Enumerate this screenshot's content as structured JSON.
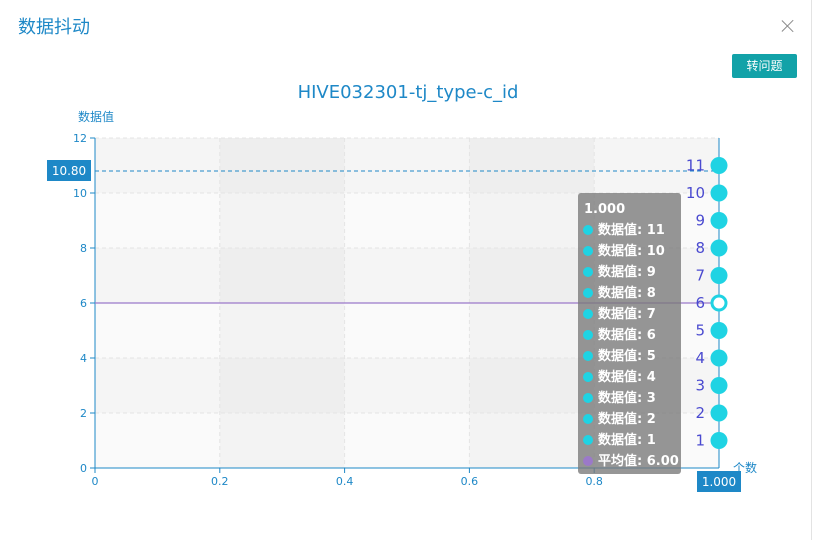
{
  "dialog": {
    "title": "数据抖动",
    "action_label": "转问题"
  },
  "chart_data": {
    "type": "scatter",
    "title": "HIVE032301-tj_type-c_id",
    "ylabel": "数据值",
    "xlabel": "个数",
    "xlim": [
      0,
      1
    ],
    "ylim": [
      0,
      12
    ],
    "x_ticks": [
      "0",
      "0.2",
      "0.4",
      "0.6",
      "0.8"
    ],
    "y_ticks": [
      "0",
      "2",
      "4",
      "6",
      "8",
      "10",
      "12"
    ],
    "grid": true,
    "series": [
      {
        "name": "数据值",
        "color": "#1fd3e3",
        "points": [
          {
            "x": 1,
            "y": 11,
            "label": "11"
          },
          {
            "x": 1,
            "y": 10,
            "label": "10"
          },
          {
            "x": 1,
            "y": 9,
            "label": "9"
          },
          {
            "x": 1,
            "y": 8,
            "label": "8"
          },
          {
            "x": 1,
            "y": 7,
            "label": "7"
          },
          {
            "x": 1,
            "y": 6,
            "label": "6"
          },
          {
            "x": 1,
            "y": 5,
            "label": "5"
          },
          {
            "x": 1,
            "y": 4,
            "label": "4"
          },
          {
            "x": 1,
            "y": 3,
            "label": "3"
          },
          {
            "x": 1,
            "y": 2,
            "label": "2"
          },
          {
            "x": 1,
            "y": 1,
            "label": "1"
          }
        ]
      }
    ],
    "average": {
      "name": "平均值",
      "value": 6.0,
      "color": "#9b79c9"
    },
    "crosshair": {
      "x_label": "1.000",
      "y_label": "10.80",
      "y": 10.8
    },
    "tooltip": {
      "header": "1.000",
      "lines": [
        "数据值: 11",
        "数据值: 10",
        "数据值: 9",
        "数据值: 8",
        "数据值: 7",
        "数据值: 6",
        "数据值: 5",
        "数据值: 4",
        "数据值: 3",
        "数据值: 2",
        "数据值: 1"
      ],
      "average_line": "平均值: 6.00"
    }
  }
}
